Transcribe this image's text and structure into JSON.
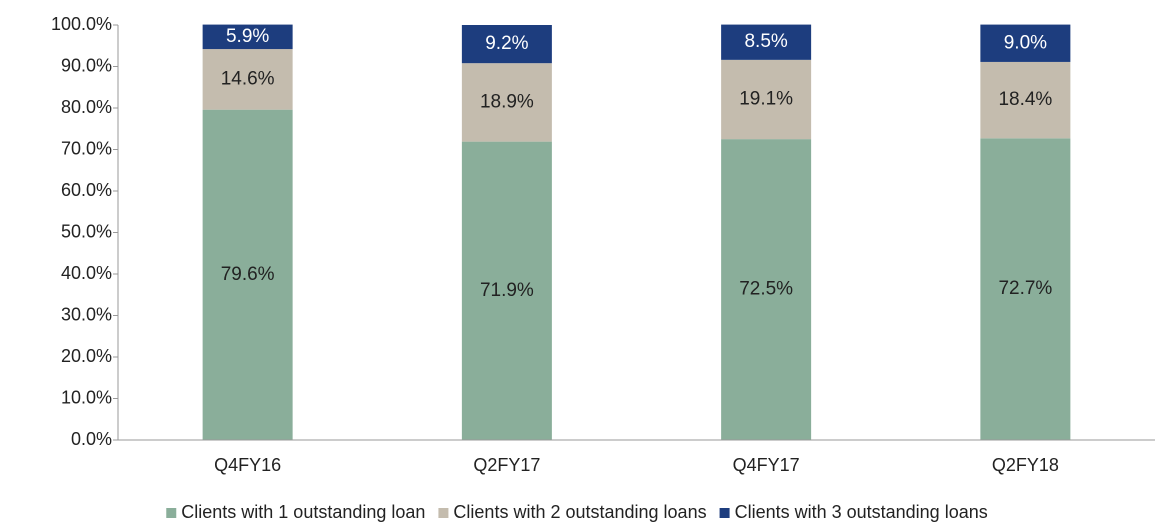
{
  "chart_data": {
    "type": "stacked_bar",
    "categories": [
      "Q4FY16",
      "Q2FY17",
      "Q4FY17",
      "Q2FY18"
    ],
    "series": [
      {
        "name": "Clients with 1 outstanding loan",
        "color": "#8aae9a",
        "label_color": "#222222",
        "values": [
          79.6,
          71.9,
          72.5,
          72.7
        ],
        "value_labels": [
          "79.6%",
          "71.9%",
          "72.5%",
          "72.7%"
        ]
      },
      {
        "name": "Clients with 2 outstanding loans",
        "color": "#c4bcae",
        "label_color": "#222222",
        "values": [
          14.6,
          18.9,
          19.1,
          18.4
        ],
        "value_labels": [
          "14.6%",
          "18.9%",
          "19.1%",
          "18.4%"
        ]
      },
      {
        "name": "Clients with 3 outstanding loans",
        "color": "#1d3d7e",
        "label_color": "#ffffff",
        "values": [
          5.9,
          9.2,
          8.5,
          9.0
        ],
        "value_labels": [
          "5.9%",
          "9.2%",
          "8.5%",
          "9.0%"
        ]
      }
    ],
    "ylim": [
      0,
      100
    ],
    "yticks": [
      {
        "value": 0,
        "label": "0.0%"
      },
      {
        "value": 10,
        "label": "10.0%"
      },
      {
        "value": 20,
        "label": "20.0%"
      },
      {
        "value": 30,
        "label": "30.0%"
      },
      {
        "value": 40,
        "label": "40.0%"
      },
      {
        "value": 50,
        "label": "50.0%"
      },
      {
        "value": 60,
        "label": "60.0%"
      },
      {
        "value": 70,
        "label": "70.0%"
      },
      {
        "value": 80,
        "label": "80.0%"
      },
      {
        "value": 90,
        "label": "90.0%"
      },
      {
        "value": 100,
        "label": "100.0%"
      }
    ],
    "legend": "bottom"
  }
}
